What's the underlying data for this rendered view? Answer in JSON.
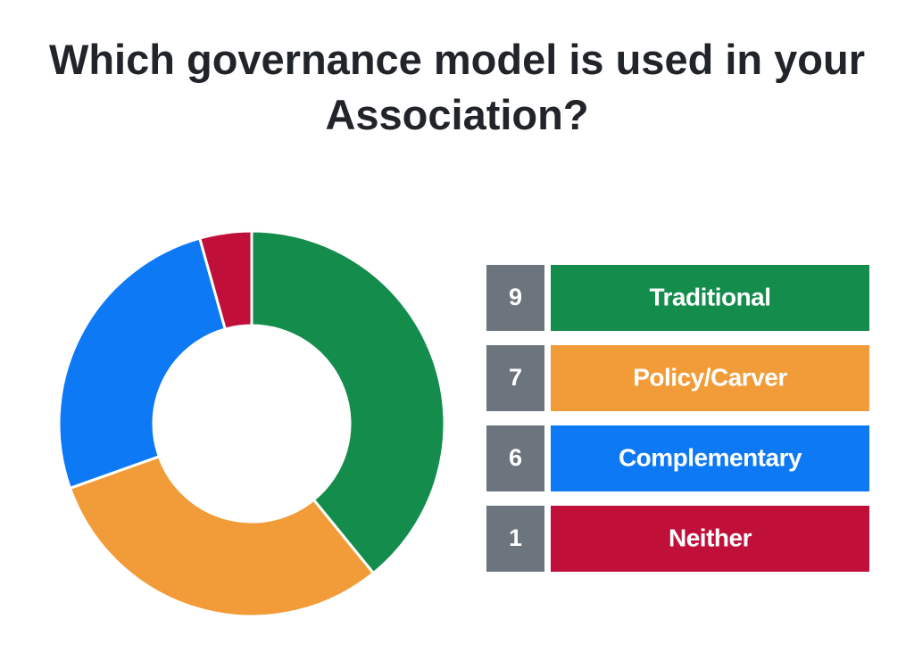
{
  "chart_data": {
    "type": "donut",
    "title": "Which governance model is used in your Association?",
    "categories": [
      "Traditional",
      "Policy/Carver",
      "Complementary",
      "Neither"
    ],
    "values": [
      9,
      7,
      6,
      1
    ],
    "colors": [
      "#148c4b",
      "#f19c38",
      "#0d79f5",
      "#c0103a"
    ]
  }
}
